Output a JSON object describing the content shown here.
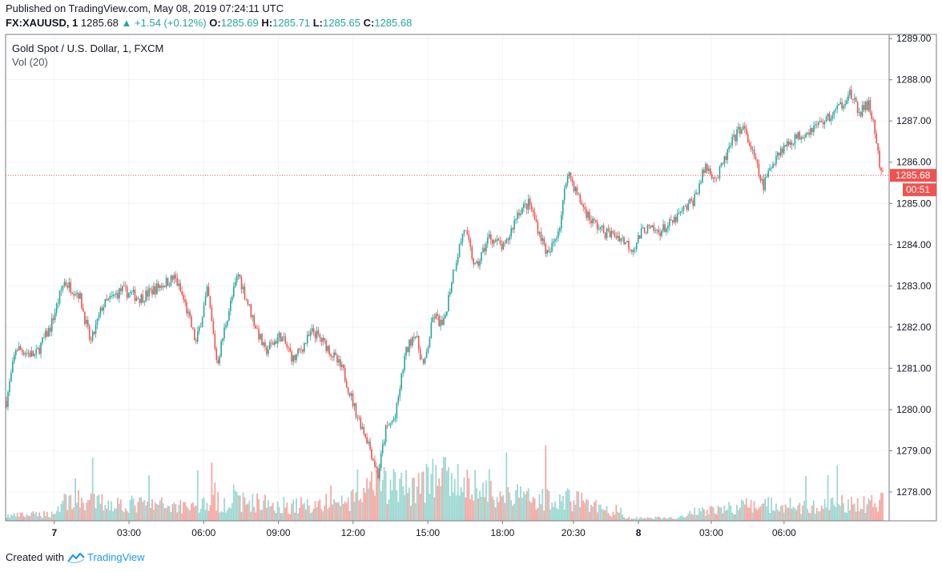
{
  "header": {
    "published": "Published on TradingView.com, May 08, 2019 07:24:11 UTC",
    "symbol": "FX:XAUUSD, 1",
    "last": "1285.68",
    "change": "+1.54 (+0.12%)",
    "o_label": "O:",
    "o_value": "1285.69",
    "h_label": "H:",
    "h_value": "1285.71",
    "l_label": "L:",
    "l_value": "1285.65",
    "c_label": "C:",
    "c_value": "1285.68"
  },
  "legend": {
    "title": "Gold Spot / U.S. Dollar, 1, FXCM",
    "volume": "Vol (20)"
  },
  "price_scale": {
    "last_price_tag": "1285.68",
    "countdown": "00:51"
  },
  "footer": {
    "created_with": "Created with",
    "brand": "TradingView"
  },
  "colors": {
    "up": "#26a69a",
    "down": "#ef5350",
    "up_volume": "#9ed8d2",
    "down_volume": "#f5a9a4",
    "grid": "#f0f3fa",
    "price_line": "#ef5350"
  },
  "chart_data": {
    "type": "candlestick",
    "title": "Gold Spot / U.S. Dollar, 1, FXCM",
    "y_axis": {
      "ticks": [
        "1278.00",
        "1279.00",
        "1280.00",
        "1281.00",
        "1282.00",
        "1283.00",
        "1284.00",
        "1285.00",
        "1286.00",
        "1287.00",
        "1288.00",
        "1289.00"
      ],
      "ylim": [
        1277.3,
        1289.1
      ],
      "position": "right"
    },
    "x_axis": {
      "ticks": [
        "7",
        "03:00",
        "06:00",
        "09:00",
        "12:00",
        "15:00",
        "18:00",
        "20:30",
        "8",
        "03:00",
        "06:00"
      ],
      "bold_ticks": [
        "7",
        "8"
      ]
    },
    "grid": true,
    "last_price": 1285.68,
    "price_path": [
      {
        "t": 0.0,
        "p": 1280.2
      },
      {
        "t": 0.5,
        "p": 1281.5
      },
      {
        "t": 1.5,
        "p": 1281.3
      },
      {
        "t": 2.3,
        "p": 1282.0
      },
      {
        "t": 3.0,
        "p": 1283.1
      },
      {
        "t": 3.8,
        "p": 1282.8
      },
      {
        "t": 4.4,
        "p": 1281.6
      },
      {
        "t": 5.0,
        "p": 1282.5
      },
      {
        "t": 6.0,
        "p": 1282.9
      },
      {
        "t": 7.0,
        "p": 1282.7
      },
      {
        "t": 8.0,
        "p": 1283.0
      },
      {
        "t": 8.8,
        "p": 1283.2
      },
      {
        "t": 9.3,
        "p": 1282.6
      },
      {
        "t": 9.9,
        "p": 1281.6
      },
      {
        "t": 10.5,
        "p": 1282.9
      },
      {
        "t": 11.0,
        "p": 1281.1
      },
      {
        "t": 11.5,
        "p": 1282.2
      },
      {
        "t": 12.1,
        "p": 1283.3
      },
      {
        "t": 12.8,
        "p": 1282.3
      },
      {
        "t": 13.5,
        "p": 1281.4
      },
      {
        "t": 14.3,
        "p": 1281.8
      },
      {
        "t": 15.0,
        "p": 1281.2
      },
      {
        "t": 16.0,
        "p": 1281.9
      },
      {
        "t": 16.8,
        "p": 1281.5
      },
      {
        "t": 17.6,
        "p": 1280.9
      },
      {
        "t": 18.2,
        "p": 1280.0
      },
      {
        "t": 18.9,
        "p": 1279.2
      },
      {
        "t": 19.4,
        "p": 1278.4
      },
      {
        "t": 19.8,
        "p": 1279.5
      },
      {
        "t": 20.3,
        "p": 1279.8
      },
      {
        "t": 20.8,
        "p": 1281.3
      },
      {
        "t": 21.3,
        "p": 1281.9
      },
      {
        "t": 21.8,
        "p": 1281.0
      },
      {
        "t": 22.3,
        "p": 1282.3
      },
      {
        "t": 22.8,
        "p": 1282.0
      },
      {
        "t": 23.3,
        "p": 1283.3
      },
      {
        "t": 23.9,
        "p": 1284.4
      },
      {
        "t": 24.5,
        "p": 1283.4
      },
      {
        "t": 25.2,
        "p": 1284.2
      },
      {
        "t": 26.0,
        "p": 1283.9
      },
      {
        "t": 26.7,
        "p": 1284.8
      },
      {
        "t": 27.3,
        "p": 1285.0
      },
      {
        "t": 27.9,
        "p": 1284.2
      },
      {
        "t": 28.3,
        "p": 1283.7
      },
      {
        "t": 28.9,
        "p": 1284.5
      },
      {
        "t": 29.3,
        "p": 1285.8
      },
      {
        "t": 29.9,
        "p": 1285.1
      },
      {
        "t": 30.5,
        "p": 1284.6
      },
      {
        "t": 31.2,
        "p": 1284.3
      },
      {
        "t": 32.0,
        "p": 1284.2
      },
      {
        "t": 32.7,
        "p": 1283.9
      },
      {
        "t": 33.3,
        "p": 1284.4
      },
      {
        "t": 34.0,
        "p": 1284.3
      },
      {
        "t": 34.7,
        "p": 1284.5
      },
      {
        "t": 35.3,
        "p": 1284.8
      },
      {
        "t": 35.9,
        "p": 1285.1
      },
      {
        "t": 36.5,
        "p": 1285.9
      },
      {
        "t": 37.1,
        "p": 1285.6
      },
      {
        "t": 37.8,
        "p": 1286.4
      },
      {
        "t": 38.4,
        "p": 1286.9
      },
      {
        "t": 38.9,
        "p": 1286.3
      },
      {
        "t": 39.5,
        "p": 1285.4
      },
      {
        "t": 40.2,
        "p": 1286.2
      },
      {
        "t": 40.9,
        "p": 1286.5
      },
      {
        "t": 41.6,
        "p": 1286.7
      },
      {
        "t": 42.3,
        "p": 1286.9
      },
      {
        "t": 43.0,
        "p": 1287.1
      },
      {
        "t": 43.6,
        "p": 1287.4
      },
      {
        "t": 44.0,
        "p": 1287.7
      },
      {
        "t": 44.5,
        "p": 1287.2
      },
      {
        "t": 45.0,
        "p": 1287.4
      },
      {
        "t": 45.3,
        "p": 1286.9
      },
      {
        "t": 45.6,
        "p": 1285.8
      },
      {
        "t": 45.75,
        "p": 1285.68
      }
    ],
    "volume_profile": [
      {
        "t": 0,
        "v": 0.08
      },
      {
        "t": 2.5,
        "v": 0.12
      },
      {
        "t": 3.0,
        "v": 0.35
      },
      {
        "t": 6,
        "v": 0.28
      },
      {
        "t": 9,
        "v": 0.25
      },
      {
        "t": 12,
        "v": 0.33
      },
      {
        "t": 15,
        "v": 0.25
      },
      {
        "t": 18,
        "v": 0.32
      },
      {
        "t": 19.5,
        "v": 0.62
      },
      {
        "t": 21,
        "v": 0.55
      },
      {
        "t": 22.5,
        "v": 0.72
      },
      {
        "t": 24,
        "v": 0.6
      },
      {
        "t": 26,
        "v": 0.42
      },
      {
        "t": 28,
        "v": 0.38
      },
      {
        "t": 30,
        "v": 0.35
      },
      {
        "t": 31,
        "v": 0.2
      },
      {
        "t": 32.5,
        "v": 0.04
      },
      {
        "t": 35,
        "v": 0.05
      },
      {
        "t": 36,
        "v": 0.15
      },
      {
        "t": 38,
        "v": 0.22
      },
      {
        "t": 40,
        "v": 0.28
      },
      {
        "t": 42,
        "v": 0.22
      },
      {
        "t": 44,
        "v": 0.3
      },
      {
        "t": 45.75,
        "v": 0.3
      }
    ]
  }
}
